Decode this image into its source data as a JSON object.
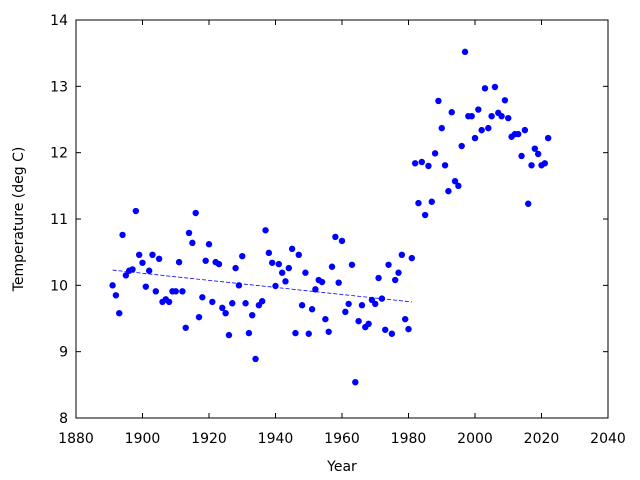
{
  "chart_data": {
    "type": "scatter",
    "xlabel": "Year",
    "ylabel": "Temperature (deg C)",
    "x": [
      1891,
      1892,
      1893,
      1894,
      1895,
      1896,
      1897,
      1898,
      1899,
      1900,
      1901,
      1902,
      1903,
      1904,
      1905,
      1906,
      1907,
      1908,
      1909,
      1910,
      1911,
      1912,
      1913,
      1914,
      1915,
      1916,
      1917,
      1918,
      1919,
      1920,
      1921,
      1922,
      1923,
      1924,
      1925,
      1926,
      1927,
      1928,
      1929,
      1930,
      1931,
      1932,
      1933,
      1934,
      1935,
      1936,
      1937,
      1938,
      1939,
      1940,
      1941,
      1942,
      1943,
      1944,
      1945,
      1946,
      1947,
      1948,
      1949,
      1950,
      1951,
      1952,
      1953,
      1954,
      1955,
      1956,
      1957,
      1958,
      1959,
      1960,
      1961,
      1962,
      1963,
      1964,
      1965,
      1966,
      1967,
      1968,
      1969,
      1970,
      1971,
      1972,
      1973,
      1974,
      1975,
      1976,
      1977,
      1978,
      1979,
      1980,
      1981,
      1982,
      1983,
      1984,
      1985,
      1986,
      1987,
      1988,
      1989,
      1990,
      1991,
      1992,
      1993,
      1994,
      1995,
      1996,
      1997,
      1998,
      1999,
      2000,
      2001,
      2002,
      2003,
      2004,
      2005,
      2006,
      2007,
      2008,
      2009,
      2010,
      2011,
      2012,
      2013,
      2014,
      2015,
      2016,
      2017,
      2018,
      2019,
      2020,
      2021,
      2022
    ],
    "values": [
      10.0,
      9.85,
      9.58,
      10.76,
      10.15,
      10.22,
      10.24,
      11.12,
      10.46,
      10.34,
      9.98,
      10.22,
      10.46,
      9.91,
      10.4,
      9.75,
      9.79,
      9.75,
      9.91,
      9.91,
      10.35,
      9.91,
      9.36,
      10.79,
      10.64,
      11.09,
      9.52,
      9.82,
      10.37,
      10.62,
      9.75,
      10.35,
      10.32,
      9.66,
      9.58,
      9.25,
      9.73,
      10.26,
      10.0,
      10.44,
      9.73,
      9.28,
      9.55,
      8.89,
      9.7,
      9.76,
      10.83,
      10.49,
      10.34,
      9.99,
      10.32,
      10.19,
      10.06,
      10.26,
      10.55,
      9.28,
      10.46,
      9.7,
      10.19,
      9.27,
      9.64,
      9.94,
      10.08,
      10.05,
      9.49,
      9.3,
      10.28,
      10.73,
      10.04,
      10.67,
      9.6,
      9.72,
      10.31,
      8.54,
      9.46,
      9.7,
      9.37,
      9.42,
      9.78,
      9.72,
      10.11,
      9.8,
      9.33,
      10.31,
      9.27,
      10.08,
      10.19,
      10.46,
      9.49,
      9.34,
      10.41,
      11.84,
      11.24,
      11.86,
      11.06,
      11.8,
      11.26,
      11.99,
      12.78,
      12.37,
      11.81,
      11.42,
      12.61,
      11.57,
      11.5,
      12.1,
      13.52,
      12.55,
      12.55,
      12.22,
      12.65,
      12.34,
      12.97,
      12.37,
      12.55,
      12.99,
      12.6,
      12.55,
      12.79,
      12.52,
      12.24,
      12.28,
      12.28,
      11.95,
      12.34,
      11.23,
      11.81,
      12.06,
      11.98,
      11.81,
      11.84,
      12.22
    ],
    "color": "#0000ff",
    "trend": {
      "x": [
        1891,
        1981
      ],
      "values": [
        10.23,
        9.75
      ],
      "color": "#0000ff"
    },
    "xlim": [
      1880,
      2040
    ],
    "xticks": [
      1880,
      1900,
      1920,
      1940,
      1960,
      1980,
      2000,
      2020,
      2040
    ],
    "ylim": [
      8,
      14
    ],
    "yticks": [
      8,
      9,
      10,
      11,
      12,
      13,
      14
    ]
  }
}
